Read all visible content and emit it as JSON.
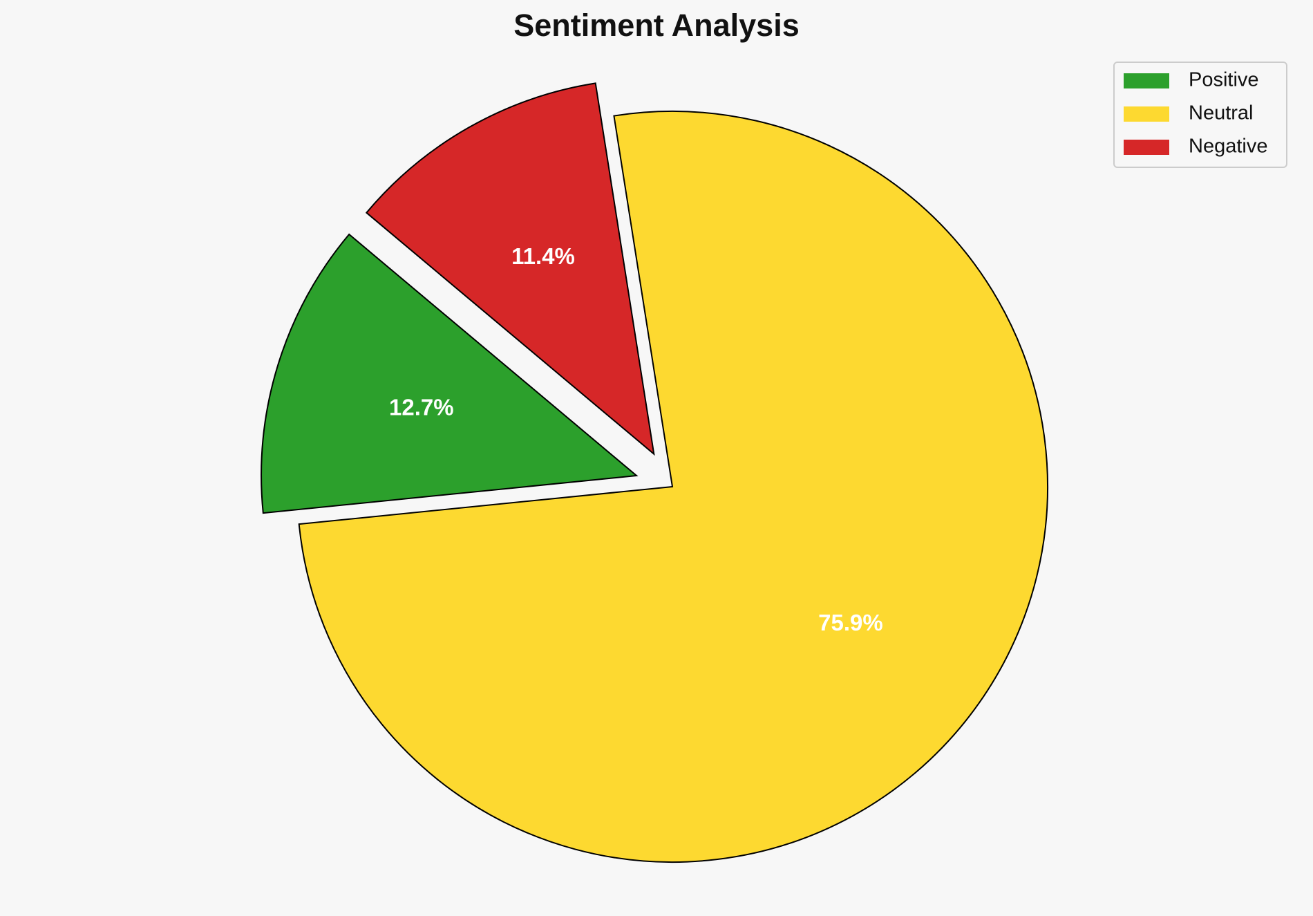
{
  "chart_data": {
    "type": "pie",
    "title": "Sentiment Analysis",
    "categories": [
      "Positive",
      "Neutral",
      "Negative"
    ],
    "values": [
      12.7,
      75.9,
      11.4
    ],
    "value_labels": [
      "12.7%",
      "75.9%",
      "11.4%"
    ],
    "colors": [
      "#2ca02c",
      "#fdd930",
      "#d62728"
    ],
    "explode": [
      0.1,
      0,
      0.1
    ],
    "startangle": 140,
    "legend": "upper right"
  }
}
